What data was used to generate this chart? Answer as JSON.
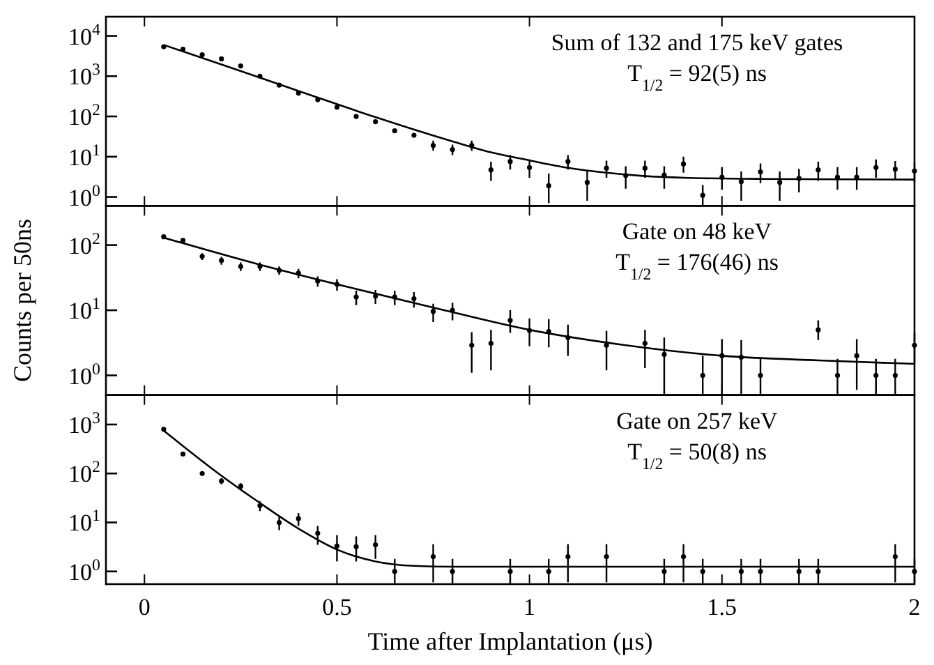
{
  "chart_data": [
    {
      "type": "scatter",
      "log": true,
      "marker": "circle",
      "tick_labels": "y",
      "xlim": [
        -0.1,
        2
      ],
      "xticks": [
        0,
        0.5,
        1,
        1.5,
        2
      ],
      "ylim": [
        0.6,
        30000
      ],
      "yticks": [
        {
          "value": 1,
          "label": "10$^{0}$"
        },
        {
          "value": 10,
          "label": "10$^{1}$"
        },
        {
          "value": 100,
          "label": "10$^{2}$"
        },
        {
          "value": 1000,
          "label": "10$^{3}$"
        },
        {
          "value": 10000,
          "label": "10$^{4}$"
        }
      ],
      "annotations": [
        "Sum of 132 and 175 keV gates",
        "T$_{1/2}$ = 92(5) ns"
      ],
      "series": [
        {
          "color": "#000000",
          "x": [
            0.05,
            0.1,
            0.15,
            0.2,
            0.25,
            0.3,
            0.35,
            0.4,
            0.45,
            0.5,
            0.55,
            0.6,
            0.65,
            0.7,
            0.75,
            0.8,
            0.85,
            0.9,
            0.95,
            1.0,
            1.05,
            1.1,
            1.15,
            1.2,
            1.25,
            1.3,
            1.35,
            1.4,
            1.45,
            1.5,
            1.55,
            1.6,
            1.65,
            1.7,
            1.75,
            1.8,
            1.85,
            1.9,
            1.95,
            2.0
          ],
          "values": [
            5400,
            4700,
            3400,
            2700,
            1800,
            1000,
            600,
            380,
            260,
            170,
            100,
            74,
            44,
            34,
            19,
            15,
            19,
            4.7,
            7.6,
            5.4,
            1.9,
            7.6,
            2.3,
            5.2,
            3.4,
            5.2,
            3.5,
            6.6,
            1.1,
            3.1,
            2.4,
            4.2,
            2.3,
            2.9,
            4.7,
            3.1,
            3.1,
            5.4,
            4.9,
            4.4
          ],
          "errors": [
            null,
            null,
            null,
            null,
            null,
            null,
            null,
            null,
            null,
            null,
            null,
            null,
            null,
            null,
            [
              14,
              25
            ],
            [
              11,
              20
            ],
            [
              14,
              25
            ],
            [
              2.5,
              7.5
            ],
            [
              4.8,
              11
            ],
            [
              3,
              8.5
            ],
            [
              0.7,
              3.8
            ],
            [
              4.8,
              11
            ],
            [
              0.8,
              4.3
            ],
            [
              3,
              8
            ],
            [
              1.6,
              5.8
            ],
            [
              3,
              8
            ],
            [
              1.6,
              5.8
            ],
            [
              4,
              10
            ],
            [
              0.6,
              2
            ],
            [
              1.5,
              5.5
            ],
            [
              0.8,
              4.3
            ],
            [
              2.2,
              6.8
            ],
            [
              0.8,
              4.3
            ],
            [
              1.3,
              5
            ],
            [
              2.5,
              7.5
            ],
            [
              1.5,
              5.5
            ],
            [
              1.5,
              5.5
            ],
            [
              3,
              8.5
            ],
            [
              2.7,
              7.8
            ],
            [
              2.3,
              7
            ]
          ]
        },
        {
          "type": "line",
          "marker": "none",
          "color": "#000000",
          "x": [
            0.05,
            0.2,
            0.4,
            0.6,
            0.8,
            0.9,
            1.0,
            1.1,
            1.2,
            1.3,
            1.4,
            1.6,
            2.0
          ],
          "values": [
            6000,
            1950,
            430,
            96,
            24,
            12.8,
            8.1,
            5.3,
            4.0,
            3.3,
            3.0,
            2.8,
            2.7
          ]
        }
      ]
    },
    {
      "type": "scatter",
      "log": true,
      "marker": "circle",
      "tick_labels": "y",
      "xlim": [
        -0.1,
        2
      ],
      "xticks": [
        0,
        0.5,
        1,
        1.5,
        2
      ],
      "ylim": [
        0.5,
        400
      ],
      "yticks": [
        {
          "value": 1,
          "label": "10$^{0}$"
        },
        {
          "value": 10,
          "label": "10$^{1}$"
        },
        {
          "value": 100,
          "label": "10$^{2}$"
        }
      ],
      "ylabel": "Counts per 50ns",
      "annotations": [
        "Gate on 48 keV",
        "T$_{1/2}$ = 176(46) ns"
      ],
      "series": [
        {
          "color": "#000000",
          "x": [
            0.05,
            0.1,
            0.15,
            0.2,
            0.25,
            0.3,
            0.35,
            0.4,
            0.45,
            0.5,
            0.55,
            0.6,
            0.65,
            0.7,
            0.75,
            0.8,
            0.85,
            0.9,
            0.95,
            1.0,
            1.05,
            1.1,
            1.2,
            1.3,
            1.35,
            1.45,
            1.5,
            1.55,
            1.6,
            1.75,
            1.8,
            1.85,
            1.9,
            1.95,
            2.0
          ],
          "values": [
            134,
            118,
            67,
            58,
            47,
            47,
            41,
            37,
            28,
            25,
            16,
            16.5,
            16,
            15,
            9.6,
            10,
            2.9,
            3.1,
            7,
            4.9,
            4.7,
            3.8,
            2.9,
            3.1,
            2.1,
            1,
            2,
            1.9,
            1,
            5,
            1,
            2,
            1,
            1,
            2.9
          ],
          "errors": [
            null,
            null,
            8,
            8,
            7,
            7,
            6,
            6,
            5,
            5,
            4,
            4,
            4,
            4,
            3,
            3,
            [
              1.1,
              4.6
            ],
            [
              1.2,
              5
            ],
            [
              4.5,
              10
            ],
            [
              2.8,
              7.5
            ],
            [
              2.7,
              7.3
            ],
            [
              2,
              6
            ],
            [
              1.2,
              4.8
            ],
            [
              1.3,
              5
            ],
            [
              0.5,
              3.8
            ],
            [
              0.5,
              2
            ],
            [
              0.5,
              3.6
            ],
            [
              0.5,
              3.5
            ],
            [
              0.5,
              1.8
            ],
            [
              3.5,
              7
            ],
            [
              0.5,
              1.8
            ],
            [
              0.6,
              3.6
            ],
            [
              0.5,
              1.8
            ],
            [
              0.5,
              1.8
            ],
            [
              1.5,
              4.5
            ]
          ]
        },
        {
          "type": "line",
          "marker": "none",
          "color": "#000000",
          "x": [
            0.05,
            0.3,
            0.5,
            0.75,
            1.0,
            1.25,
            1.5,
            1.75,
            2.0
          ],
          "values": [
            130,
            50,
            25,
            11,
            5,
            2.9,
            2.0,
            1.7,
            1.5
          ]
        }
      ]
    },
    {
      "type": "scatter",
      "log": true,
      "marker": "circle",
      "xlim": [
        -0.1,
        2
      ],
      "xticks": [
        0,
        0.5,
        1,
        1.5,
        2
      ],
      "ylim": [
        0.55,
        4000
      ],
      "yticks": [
        {
          "value": 1,
          "label": "10$^{0}$"
        },
        {
          "value": 10,
          "label": "10$^{1}$"
        },
        {
          "value": 100,
          "label": "10$^{2}$"
        },
        {
          "value": 1000,
          "label": "10$^{3}$"
        }
      ],
      "xlabel": "Time after Implantation (μs)",
      "annotations": [
        "Gate on 257 keV",
        "T$_{1/2}$ = 50(8) ns"
      ],
      "series": [
        {
          "color": "#000000",
          "x": [
            0.05,
            0.1,
            0.15,
            0.2,
            0.25,
            0.3,
            0.35,
            0.4,
            0.45,
            0.5,
            0.55,
            0.6,
            0.65,
            0.75,
            0.8,
            0.95,
            1.05,
            1.1,
            1.2,
            1.35,
            1.4,
            1.45,
            1.55,
            1.6,
            1.7,
            1.75,
            1.95,
            2.0
          ],
          "values": [
            800,
            250,
            100,
            70,
            55,
            22,
            10,
            12,
            6,
            3.3,
            3.2,
            3.5,
            1,
            2,
            1,
            1,
            1,
            2,
            2,
            1,
            2,
            1,
            1,
            1,
            1,
            1,
            2,
            1
          ],
          "errors": [
            null,
            null,
            null,
            10,
            8,
            5,
            3,
            3.5,
            2.5,
            [
              1.6,
              5.5
            ],
            [
              1.6,
              5.2
            ],
            [
              1.8,
              5.5
            ],
            [
              0.55,
              1.8
            ],
            [
              0.6,
              3.6
            ],
            [
              0.55,
              1.8
            ],
            [
              0.55,
              1.8
            ],
            [
              0.55,
              1.8
            ],
            [
              0.6,
              3.6
            ],
            [
              0.6,
              3.6
            ],
            [
              0.55,
              1.8
            ],
            [
              0.6,
              3.6
            ],
            [
              0.55,
              1.8
            ],
            [
              0.55,
              1.8
            ],
            [
              0.55,
              1.8
            ],
            [
              0.55,
              1.8
            ],
            [
              0.55,
              1.8
            ],
            [
              0.6,
              3.6
            ],
            [
              0.55,
              1.8
            ]
          ]
        },
        {
          "type": "line",
          "marker": "none",
          "color": "#000000",
          "x": [
            0.05,
            0.2,
            0.3,
            0.4,
            0.5,
            0.6,
            0.7,
            0.8,
            2.0
          ],
          "values": [
            750,
            90,
            25,
            7.5,
            2.8,
            1.6,
            1.3,
            1.25,
            1.25
          ]
        }
      ]
    }
  ]
}
